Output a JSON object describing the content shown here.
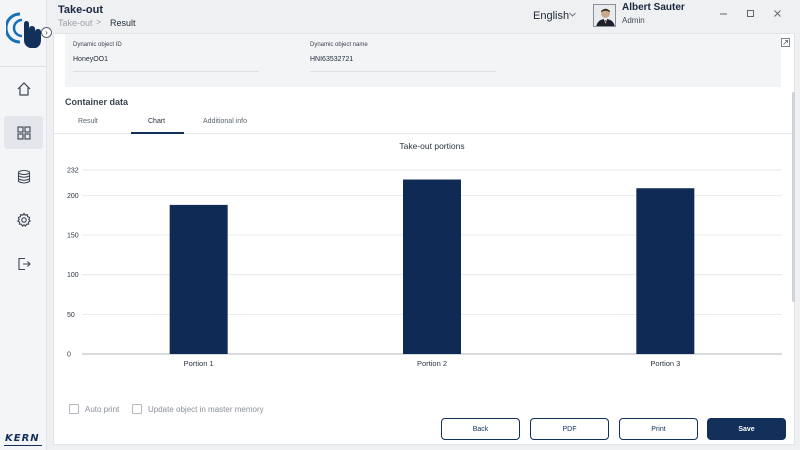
{
  "header": {
    "title": "Take-out",
    "breadcrumb": [
      "Take-out",
      "Result"
    ],
    "breadcrumb_separator": ">",
    "language": "English",
    "user": {
      "name": "Albert Sauter",
      "role": "Admin"
    }
  },
  "sidebar": {
    "brand": "KERN",
    "items": [
      {
        "icon": "home-icon"
      },
      {
        "icon": "dashboard-icon",
        "active": true
      },
      {
        "icon": "database-icon"
      },
      {
        "icon": "gear-icon"
      },
      {
        "icon": "logout-icon"
      }
    ]
  },
  "info": {
    "object_id_label": "Dynamic object ID",
    "object_id_value": "HoneyOO1",
    "object_name_label": "Dynamic object name",
    "object_name_value": "HNI63532721"
  },
  "section": {
    "title": "Container data"
  },
  "tabs": [
    {
      "label": "Result"
    },
    {
      "label": "Chart",
      "active": true
    },
    {
      "label": "Additional info"
    }
  ],
  "chart_data": {
    "type": "bar",
    "title": "Take-out portions",
    "categories": [
      "Portion 1",
      "Portion 2",
      "Portion 3"
    ],
    "values": [
      188,
      220,
      209
    ],
    "ylim": [
      0,
      232
    ],
    "yticks": [
      0,
      50,
      100,
      150,
      200,
      232
    ],
    "grid": true,
    "bar_color": "#0f2a55"
  },
  "options": {
    "auto_print": "Auto print",
    "update_master": "Update object in master memory"
  },
  "buttons": {
    "back": "Back",
    "pdf": "PDF",
    "print": "Print",
    "save": "Save"
  },
  "colors": {
    "accent": "#12305a",
    "logo": "#1a6fb3"
  }
}
